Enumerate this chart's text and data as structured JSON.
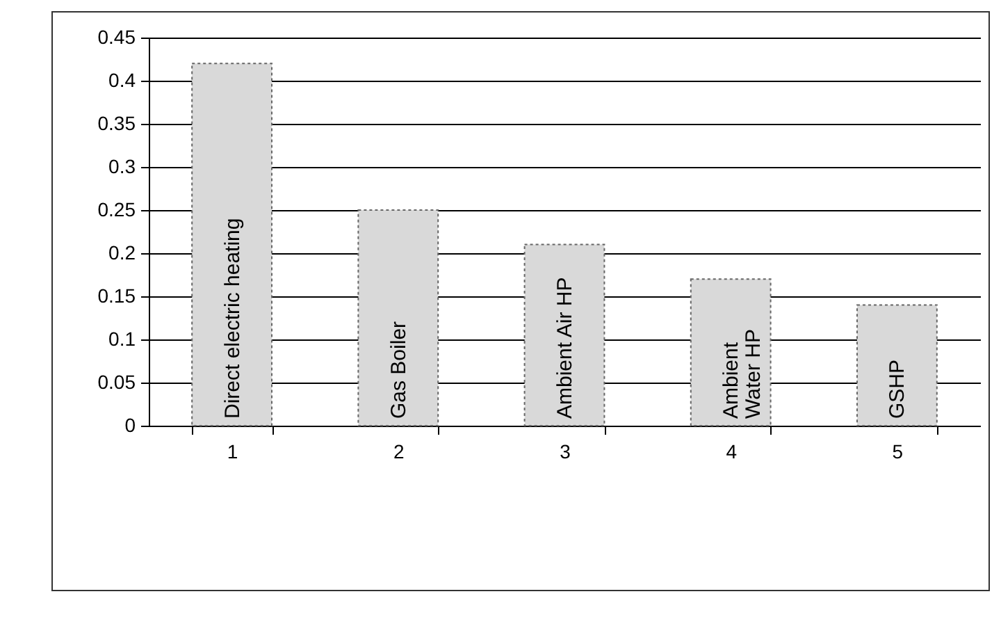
{
  "chart_data": {
    "type": "bar",
    "categories": [
      "1",
      "2",
      "3",
      "4",
      "5"
    ],
    "values": [
      0.42,
      0.25,
      0.21,
      0.17,
      0.14
    ],
    "color": "#d9d9d9",
    "ylim": [
      0,
      0.45
    ],
    "yticks": [
      0,
      0.05,
      0.1,
      0.15,
      0.2,
      0.25,
      0.3,
      0.35,
      0.4,
      0.45
    ],
    "grid": "y",
    "annotations": [
      "Direct electric heating",
      "Gas  Boiler",
      "Ambient Air HP",
      "Ambient\nWater HP",
      "GSHP"
    ]
  }
}
